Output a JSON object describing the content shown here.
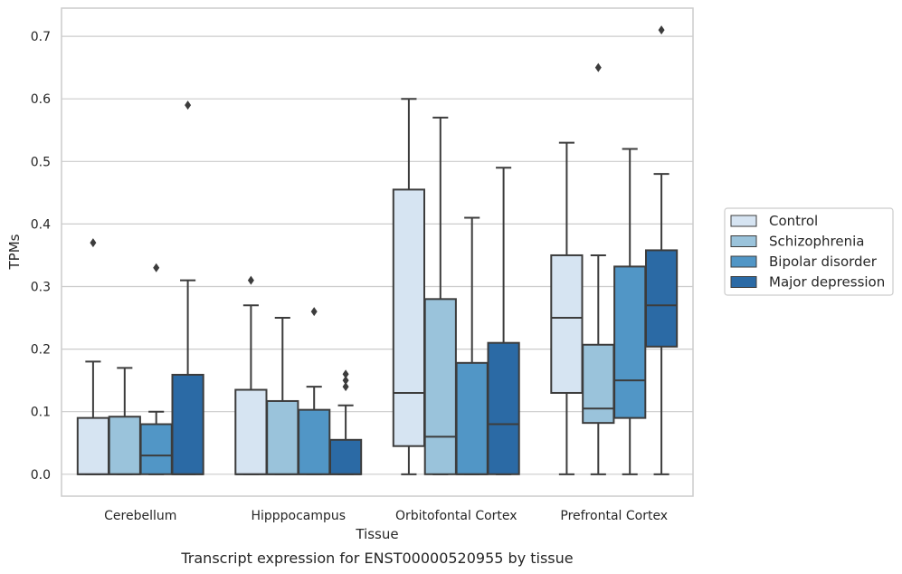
{
  "chart_data": {
    "type": "box",
    "xlabel": "Tissue",
    "ylabel": "TPMs",
    "caption": "Transcript expression for ENST00000520955 by tissue",
    "ylim": [
      -0.035,
      0.745
    ],
    "yticks": [
      0.0,
      0.1,
      0.2,
      0.3,
      0.4,
      0.5,
      0.6,
      0.7
    ],
    "ytick_labels": [
      "0.0",
      "0.1",
      "0.2",
      "0.3",
      "0.4",
      "0.5",
      "0.6",
      "0.7"
    ],
    "grid": "horizontal",
    "legend_position": "right",
    "categories": [
      "Cerebellum",
      "Hipppocampus",
      "Orbitofontal Cortex",
      "Prefrontal Cortex"
    ],
    "series": [
      {
        "name": "Control",
        "color": "#d6e4f2",
        "boxes": [
          {
            "whislo": 0.0,
            "q1": 0.0,
            "med": 0.0,
            "q3": 0.09,
            "whishi": 0.18,
            "fliers": [
              0.37
            ]
          },
          {
            "whislo": 0.0,
            "q1": 0.0,
            "med": 0.0,
            "q3": 0.135,
            "whishi": 0.27,
            "fliers": [
              0.31
            ]
          },
          {
            "whislo": 0.0,
            "q1": 0.045,
            "med": 0.13,
            "q3": 0.455,
            "whishi": 0.6,
            "fliers": []
          },
          {
            "whislo": 0.0,
            "q1": 0.13,
            "med": 0.25,
            "q3": 0.35,
            "whishi": 0.53,
            "fliers": []
          }
        ]
      },
      {
        "name": "Schizophrenia",
        "color": "#9ac3db",
        "boxes": [
          {
            "whislo": 0.0,
            "q1": 0.0,
            "med": 0.0,
            "q3": 0.092,
            "whishi": 0.17,
            "fliers": []
          },
          {
            "whislo": 0.0,
            "q1": 0.0,
            "med": 0.0,
            "q3": 0.117,
            "whishi": 0.25,
            "fliers": []
          },
          {
            "whislo": 0.0,
            "q1": 0.0,
            "med": 0.06,
            "q3": 0.28,
            "whishi": 0.57,
            "fliers": []
          },
          {
            "whislo": 0.0,
            "q1": 0.082,
            "med": 0.105,
            "q3": 0.207,
            "whishi": 0.35,
            "fliers": [
              0.65
            ]
          }
        ]
      },
      {
        "name": "Bipolar disorder",
        "color": "#5196c6",
        "boxes": [
          {
            "whislo": 0.0,
            "q1": 0.0,
            "med": 0.03,
            "q3": 0.08,
            "whishi": 0.1,
            "fliers": [
              0.33
            ]
          },
          {
            "whislo": 0.0,
            "q1": 0.0,
            "med": 0.0,
            "q3": 0.103,
            "whishi": 0.14,
            "fliers": [
              0.26
            ]
          },
          {
            "whislo": 0.0,
            "q1": 0.0,
            "med": 0.0,
            "q3": 0.178,
            "whishi": 0.41,
            "fliers": []
          },
          {
            "whislo": 0.0,
            "q1": 0.09,
            "med": 0.15,
            "q3": 0.332,
            "whishi": 0.52,
            "fliers": []
          }
        ]
      },
      {
        "name": "Major depression",
        "color": "#2b6aa5",
        "boxes": [
          {
            "whislo": 0.0,
            "q1": 0.0,
            "med": 0.0,
            "q3": 0.159,
            "whishi": 0.31,
            "fliers": [
              0.59
            ]
          },
          {
            "whislo": 0.0,
            "q1": 0.0,
            "med": 0.0,
            "q3": 0.055,
            "whishi": 0.11,
            "fliers": [
              0.14,
              0.15,
              0.16
            ]
          },
          {
            "whislo": 0.0,
            "q1": 0.0,
            "med": 0.08,
            "q3": 0.21,
            "whishi": 0.49,
            "fliers": []
          },
          {
            "whislo": 0.0,
            "q1": 0.204,
            "med": 0.27,
            "q3": 0.358,
            "whishi": 0.48,
            "fliers": [
              0.71
            ]
          }
        ]
      }
    ]
  }
}
